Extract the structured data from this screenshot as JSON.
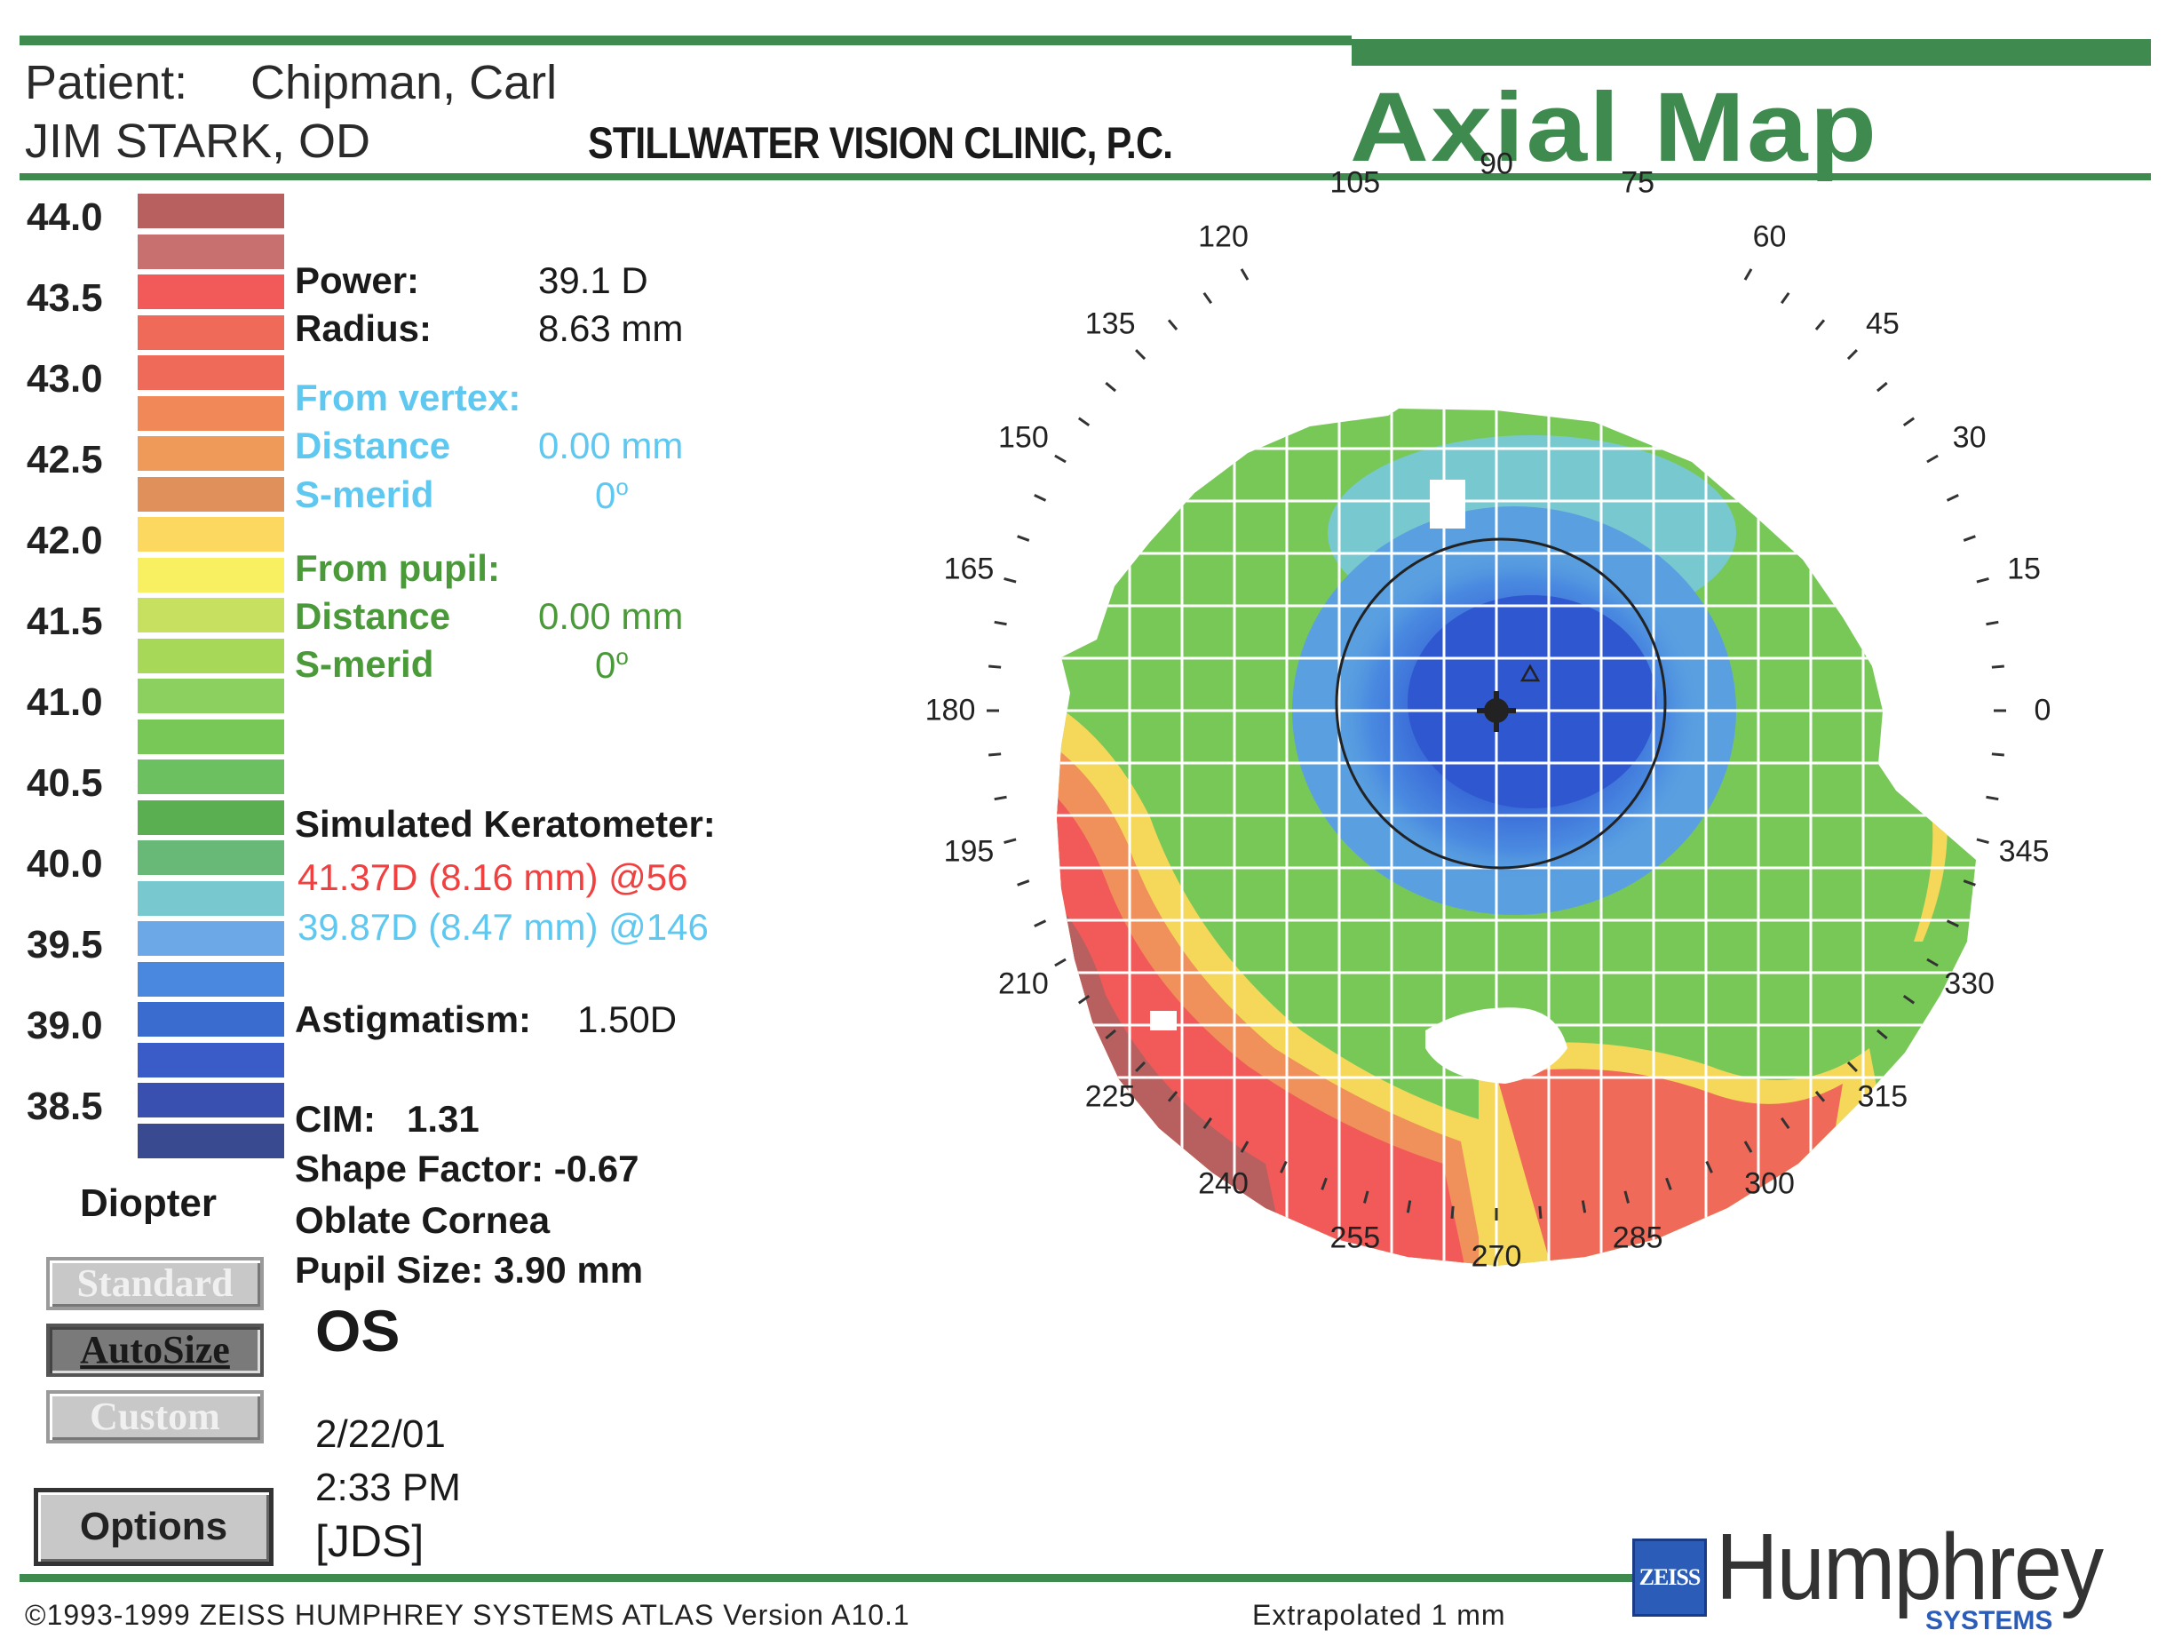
{
  "header": {
    "patient_label": "Patient:",
    "patient_name": "Chipman, Carl",
    "doctor": "JIM STARK, OD",
    "clinic": "STILLWATER VISION CLINIC, P.C.",
    "title": "Axial Map"
  },
  "colors": {
    "brand_green": "#3f8a4f",
    "vertex_blue": "#5ec8f0",
    "pupil_green": "#4a9a3a",
    "keratometer_red": "#f04040",
    "keratometer_blue": "#5ec8f0"
  },
  "scale": {
    "labels": [
      "44.0",
      "43.5",
      "43.0",
      "42.5",
      "42.0",
      "41.5",
      "41.0",
      "40.5",
      "40.0",
      "39.5",
      "39.0",
      "38.5"
    ],
    "swatch_colors": [
      "#b86060",
      "#c87070",
      "#f25a5a",
      "#f06a5a",
      "#f06a5a",
      "#f08858",
      "#f09a5a",
      "#e0905a",
      "#fcd860",
      "#f8f060",
      "#c8e060",
      "#a8d858",
      "#8cd060",
      "#78c858",
      "#6cc060",
      "#5ab050",
      "#68b878",
      "#78c8d0",
      "#6ca8e8",
      "#4a88e0",
      "#3a6cd0",
      "#3a5cc8",
      "#3a50b0",
      "#3a4a90"
    ],
    "unit_label": "Diopter"
  },
  "buttons": {
    "standard": "Standard",
    "autosize": "AutoSize",
    "custom": "Custom",
    "options": "Options"
  },
  "readout": {
    "power_label": "Power:",
    "power_value": "39.1 D",
    "radius_label": "Radius:",
    "radius_value": "8.63 mm",
    "vertex_heading": "From vertex:",
    "vertex_distance_label": "Distance",
    "vertex_distance_value": "0.00 mm",
    "vertex_smerid_label": "S-merid",
    "vertex_smerid_value": "0",
    "pupil_heading": "From pupil:",
    "pupil_distance_label": "Distance",
    "pupil_distance_value": "0.00 mm",
    "pupil_smerid_label": "S-merid",
    "pupil_smerid_value": "0",
    "degree_symbol": "o"
  },
  "keratometer": {
    "heading": "Simulated Keratometer:",
    "steep": "41.37D (8.16 mm) @56",
    "flat": "39.87D (8.47 mm) @146",
    "astig_label": "Astigmatism:",
    "astig_value": "1.50D",
    "cim": "CIM:   1.31",
    "shape_factor": "Shape Factor: -0.67",
    "cornea": "Oblate Cornea",
    "pupil_size": "Pupil Size: 3.90 mm"
  },
  "eye": "OS",
  "date": "2/22/01",
  "time": "2:33 PM",
  "operator": "[JDS]",
  "map": {
    "angle_labels": [
      "0",
      "15",
      "30",
      "45",
      "60",
      "75",
      "90",
      "105",
      "120",
      "135",
      "150",
      "165",
      "180",
      "195",
      "210",
      "225",
      "240",
      "255",
      "270",
      "285",
      "300",
      "315",
      "330",
      "345"
    ]
  },
  "footer": {
    "copyright": "©1993-1999 ZEISS HUMPHREY SYSTEMS ATLAS  Version A10.1",
    "extrapolated": "Extrapolated 1 mm",
    "zeiss": "ZEISS",
    "brand": "Humphrey",
    "systems": "SYSTEMS"
  }
}
